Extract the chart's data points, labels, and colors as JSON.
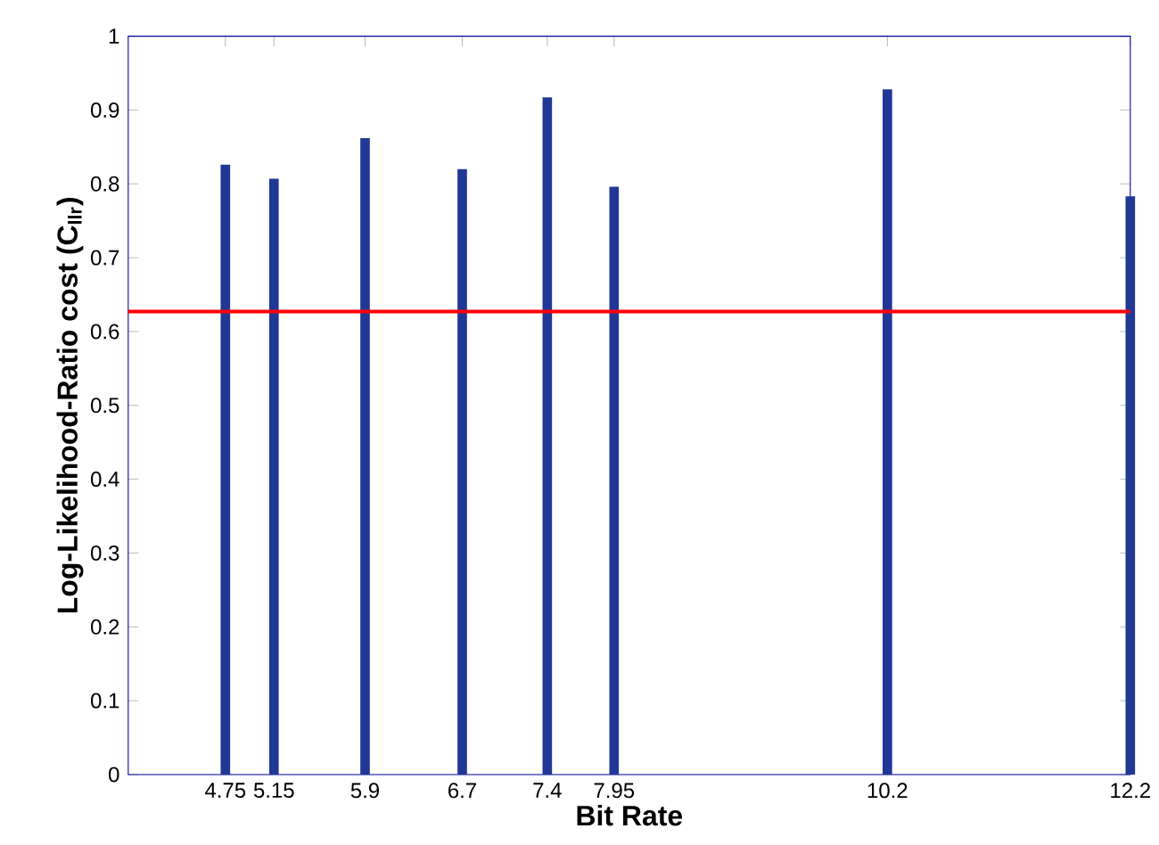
{
  "chart_data": {
    "type": "bar",
    "xlabel": "Bit Rate",
    "ylabel": "Log-Likelihood-Ratio cost (C$_{llr}$)",
    "x": [
      4.75,
      5.15,
      5.9,
      6.7,
      7.4,
      7.95,
      10.2,
      12.2
    ],
    "values": [
      0.826,
      0.807,
      0.862,
      0.82,
      0.917,
      0.796,
      0.928,
      0.783
    ],
    "color": "#203796",
    "xlim": [
      3.95,
      12.2
    ],
    "xticks": [
      4.75,
      5.15,
      5.9,
      6.7,
      7.4,
      7.95,
      10.2,
      12.2
    ],
    "ylim": [
      0,
      1
    ],
    "yticks": [
      0,
      0.1,
      0.2,
      0.3,
      0.4,
      0.5,
      0.6,
      0.7,
      0.8,
      0.9,
      1
    ],
    "ref_lines": [
      {
        "axis": "y",
        "value": 0.627,
        "color": "#ff0000"
      }
    ]
  }
}
